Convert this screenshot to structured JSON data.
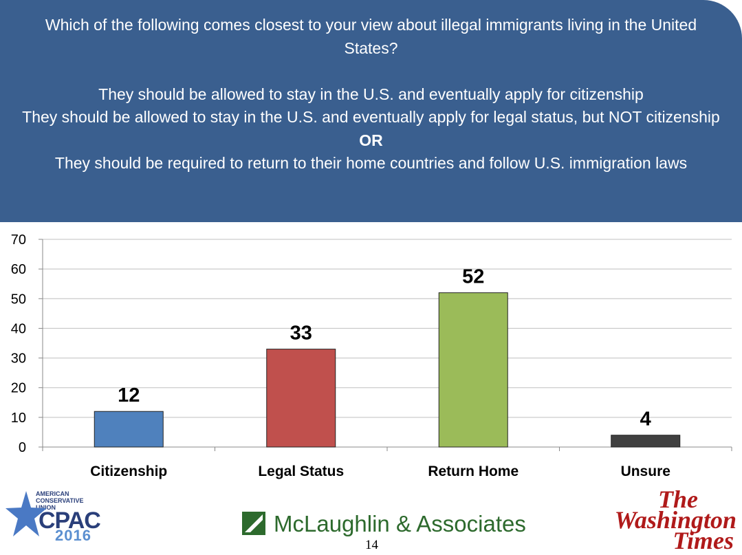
{
  "question": {
    "line1": "Which of the following comes closest to your view about illegal immigrants living in the United States?",
    "option1": "They should be allowed to stay in the U.S. and eventually apply for citizenship",
    "option2": "They should be allowed to stay in the U.S. and eventually apply for legal status, but NOT citizenship",
    "or": "OR",
    "option3": "They should be required to return to their home countries and follow U.S. immigration laws"
  },
  "chart_data": {
    "type": "bar",
    "categories": [
      "Citizenship",
      "Legal Status",
      "Return Home",
      "Unsure"
    ],
    "values": [
      12,
      33,
      52,
      4
    ],
    "colors": [
      "#4f81bd",
      "#c0504d",
      "#9bbb59",
      "#404040"
    ],
    "title": "",
    "xlabel": "",
    "ylabel": "",
    "ylim": [
      0,
      70
    ],
    "yticks": [
      0,
      10,
      20,
      30,
      40,
      50,
      60,
      70
    ],
    "grid": true,
    "data_labels": true
  },
  "footer": {
    "cpac_small": "AMERICAN CONSERVATIVE UNION",
    "cpac_name": "CPAC",
    "cpac_year": "2016",
    "pollster": "McLaughlin & Associates",
    "page_number": "14",
    "newspaper_line1": "The",
    "newspaper_line2": "Washington",
    "newspaper_line3": "Times"
  }
}
